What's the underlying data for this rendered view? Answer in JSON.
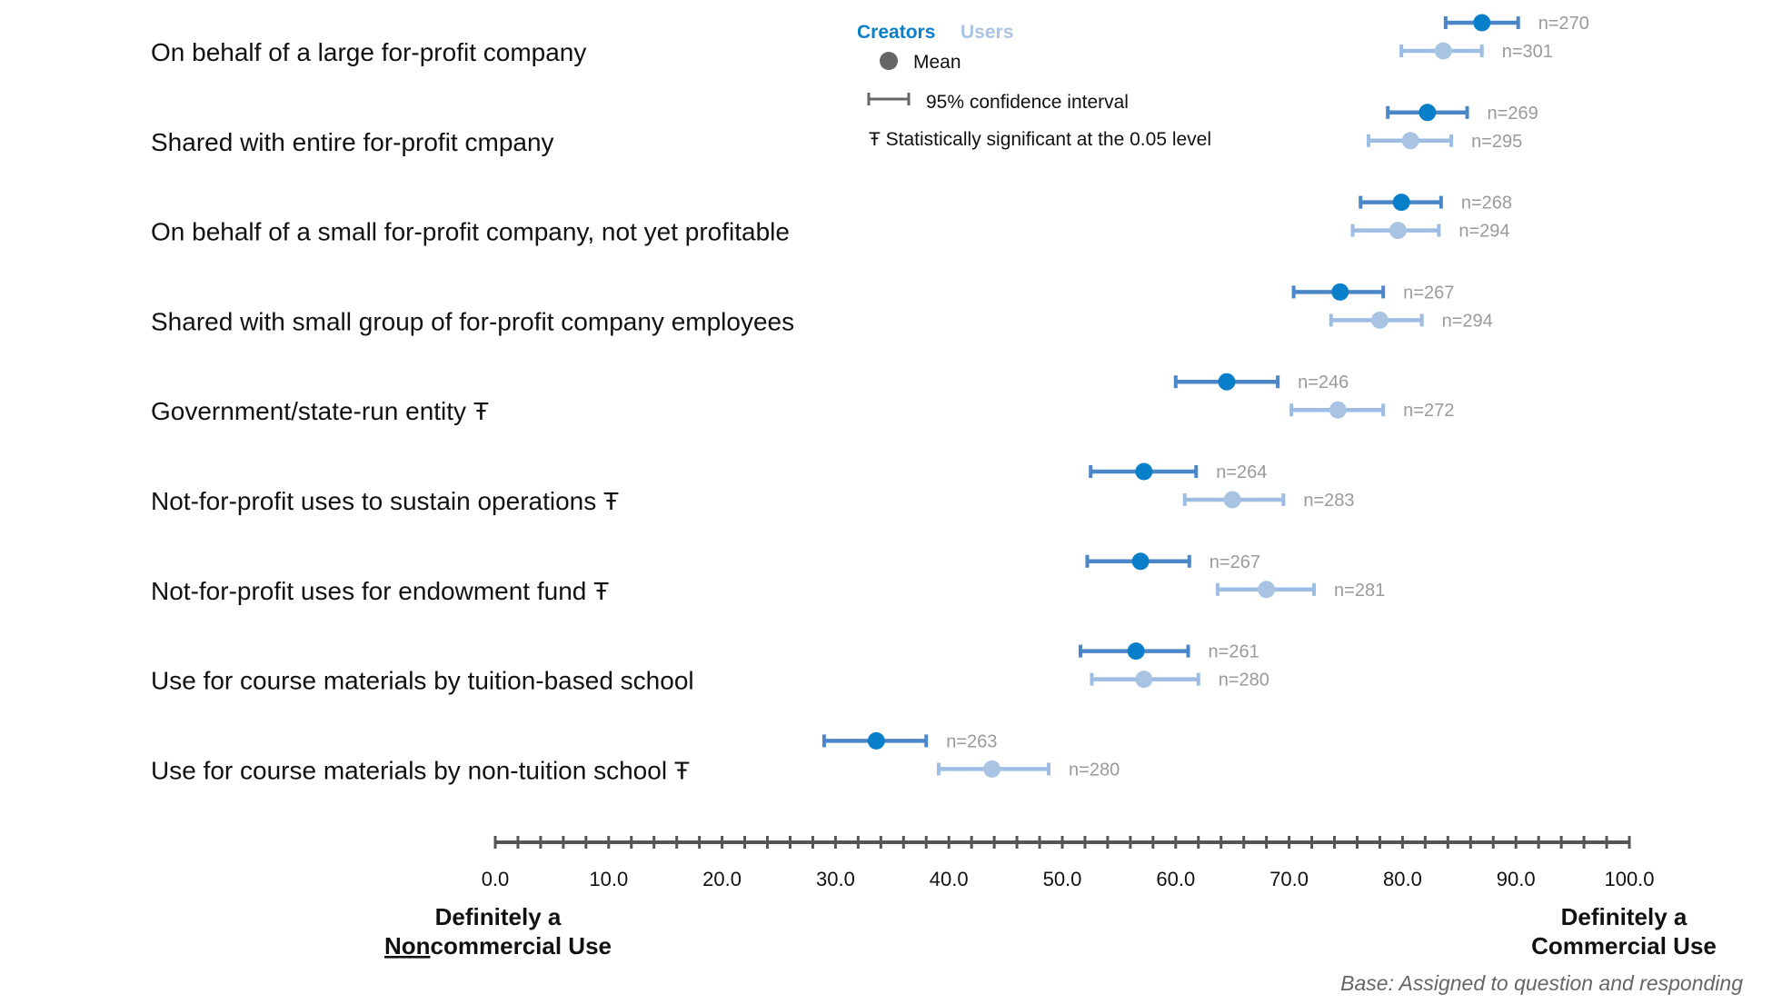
{
  "chart_data": {
    "type": "scatter",
    "subtype": "dot-with-confidence-interval",
    "orientation": "horizontal",
    "xlim": [
      0,
      100
    ],
    "x_ticks": [
      "0.0",
      "10.0",
      "20.0",
      "30.0",
      "40.0",
      "50.0",
      "60.0",
      "70.0",
      "80.0",
      "90.0",
      "100.0"
    ],
    "x_minor_step": 2,
    "x_end_labels": {
      "left": [
        "Definitely a",
        "Noncommercial Use"
      ],
      "left_underline": "Non",
      "right": [
        "Definitely a",
        "Commercial Use"
      ]
    },
    "categories": [
      "On behalf of a large for-profit company",
      "Shared with entire for-profit cmpany",
      "On behalf of a small for-profit company, not yet profitable",
      "Shared with small group of for-profit company employees",
      "Government/state-run entity Ŧ",
      "Not-for-profit uses to sustain operations Ŧ",
      "Not-for-profit uses for endowment fund Ŧ",
      "Use for course materials by tuition-based school",
      "Use for course materials by non-tuition school Ŧ"
    ],
    "series": [
      {
        "name": "Creators",
        "color": "#4a86c8",
        "marker_color": "#0a7fc9",
        "mean": [
          87.0,
          82.2,
          79.9,
          74.5,
          64.5,
          57.2,
          56.9,
          56.5,
          33.6
        ],
        "ci_low": [
          83.8,
          78.7,
          76.3,
          70.4,
          60.0,
          52.5,
          52.2,
          51.6,
          29.0
        ],
        "ci_high": [
          90.2,
          85.7,
          83.4,
          78.3,
          69.0,
          61.8,
          61.2,
          61.1,
          38.0
        ],
        "n": [
          "n=270",
          "n=269",
          "n=268",
          "n=267",
          "n=246",
          "n=264",
          "n=267",
          "n=261",
          "n=263"
        ]
      },
      {
        "name": "Users",
        "color": "#9dbde4",
        "marker_color": "#a9c4e3",
        "mean": [
          83.6,
          80.7,
          79.6,
          78.0,
          74.3,
          65.0,
          68.0,
          57.2,
          43.8
        ],
        "ci_low": [
          79.9,
          77.0,
          75.6,
          73.7,
          70.2,
          60.8,
          63.7,
          52.6,
          39.1
        ],
        "ci_high": [
          87.0,
          84.3,
          83.2,
          81.7,
          78.3,
          69.5,
          72.2,
          62.0,
          48.8
        ],
        "n": [
          "n=301",
          "n=295",
          "n=294",
          "n=294",
          "n=272",
          "n=283",
          "n=281",
          "n=280",
          "n=280"
        ]
      }
    ],
    "legend": {
      "placement": "top-center",
      "series_labels": [
        "Creators",
        "Users"
      ],
      "mean_label": "Mean",
      "ci_label": "95% confidence interval",
      "significance_label": "Ŧ Statistically significant at the 0.05 level"
    },
    "note": "Base: Assigned to question and responding",
    "colors": {
      "axis": "#555555",
      "legend_marker": "#666666"
    }
  }
}
